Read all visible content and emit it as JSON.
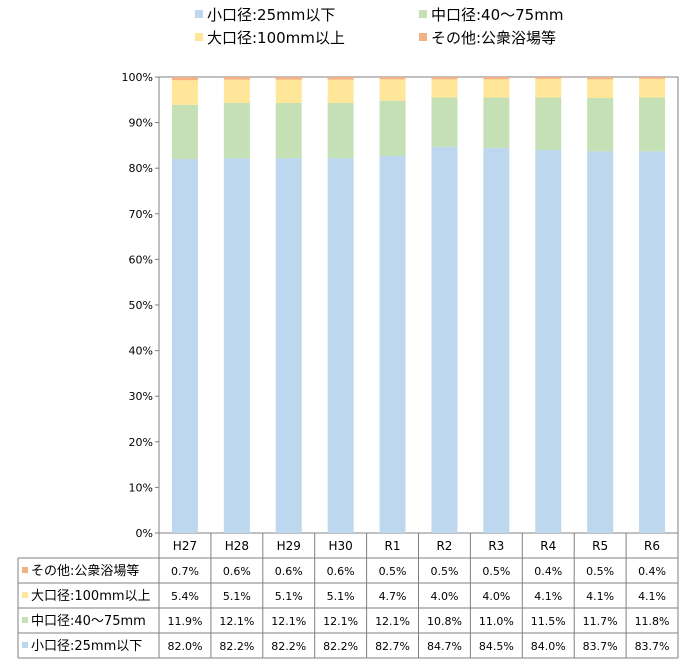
{
  "chart_data": {
    "type": "bar",
    "stacked": true,
    "percent": true,
    "categories": [
      "H27",
      "H28",
      "H29",
      "H30",
      "R1",
      "R2",
      "R3",
      "R4",
      "R5",
      "R6"
    ],
    "series": [
      {
        "name": "小口径:25mm以下",
        "legend": "小口径:25mm以下",
        "color": "#bdd7ee",
        "values": [
          82.0,
          82.2,
          82.2,
          82.2,
          82.7,
          84.7,
          84.5,
          84.0,
          83.7,
          83.7
        ],
        "labels": [
          "82.0%",
          "82.2%",
          "82.2%",
          "82.2%",
          "82.7%",
          "84.7%",
          "84.5%",
          "84.0%",
          "83.7%",
          "83.7%"
        ]
      },
      {
        "name": "中口径:40〜75mm",
        "legend": "中口径:40～75mm",
        "color": "#c5e0b4",
        "values": [
          11.9,
          12.1,
          12.1,
          12.1,
          12.1,
          10.8,
          11.0,
          11.5,
          11.7,
          11.8
        ],
        "labels": [
          "11.9%",
          "12.1%",
          "12.1%",
          "12.1%",
          "12.1%",
          "10.8%",
          "11.0%",
          "11.5%",
          "11.7%",
          "11.8%"
        ]
      },
      {
        "name": "大口径:100mm以上",
        "legend": "大口径:100mm以上",
        "color": "#ffe699",
        "values": [
          5.4,
          5.1,
          5.1,
          5.1,
          4.7,
          4.0,
          4.0,
          4.1,
          4.1,
          4.1
        ],
        "labels": [
          "5.4%",
          "5.1%",
          "5.1%",
          "5.1%",
          "4.7%",
          "4.0%",
          "4.0%",
          "4.1%",
          "4.1%",
          "4.1%"
        ]
      },
      {
        "name": "その他:公衆浴場等",
        "legend": "その他:公衆浴場等",
        "color": "#f4b183",
        "values": [
          0.7,
          0.6,
          0.6,
          0.6,
          0.5,
          0.5,
          0.5,
          0.4,
          0.5,
          0.4
        ],
        "labels": [
          "0.7%",
          "0.6%",
          "0.6%",
          "0.6%",
          "0.5%",
          "0.5%",
          "0.5%",
          "0.4%",
          "0.5%",
          "0.4%"
        ]
      }
    ],
    "y_ticks": [
      "0%",
      "10%",
      "20%",
      "30%",
      "40%",
      "50%",
      "60%",
      "70%",
      "80%",
      "90%",
      "100%"
    ],
    "ylim": [
      0,
      100
    ],
    "legend_position": "top",
    "title": "",
    "xlabel": "",
    "ylabel": ""
  }
}
